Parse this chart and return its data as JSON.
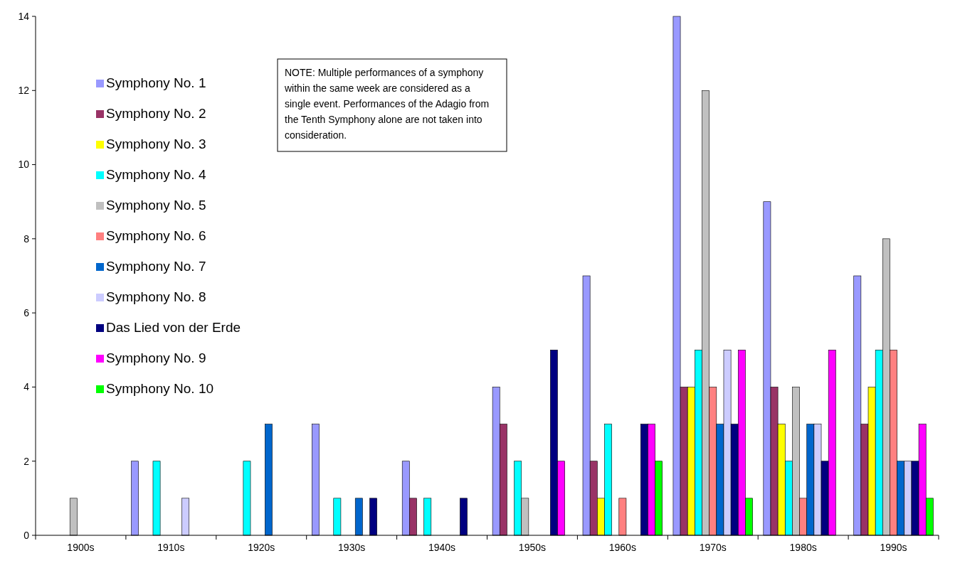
{
  "chart_data": {
    "type": "bar",
    "categories": [
      "1900s",
      "1910s",
      "1920s",
      "1930s",
      "1940s",
      "1950s",
      "1960s",
      "1970s",
      "1980s",
      "1990s"
    ],
    "series": [
      {
        "name": "Symphony No. 1",
        "color": "#9999ff",
        "values": [
          0,
          2,
          0,
          3,
          2,
          4,
          7,
          14,
          9,
          7
        ]
      },
      {
        "name": "Symphony No. 2",
        "color": "#993366",
        "values": [
          0,
          0,
          0,
          0,
          1,
          3,
          2,
          4,
          4,
          3
        ]
      },
      {
        "name": "Symphony No. 3",
        "color": "#ffff00",
        "values": [
          0,
          0,
          0,
          0,
          0,
          0,
          1,
          4,
          3,
          4
        ]
      },
      {
        "name": "Symphony No. 4",
        "color": "#00ffff",
        "values": [
          0,
          2,
          2,
          1,
          1,
          2,
          3,
          5,
          2,
          5
        ]
      },
      {
        "name": "Symphony No. 5",
        "color": "#c0c0c0",
        "values": [
          1,
          0,
          0,
          0,
          0,
          1,
          0,
          12,
          4,
          8
        ]
      },
      {
        "name": "Symphony No. 6",
        "color": "#ff8080",
        "values": [
          0,
          0,
          0,
          0,
          0,
          0,
          1,
          4,
          1,
          5
        ]
      },
      {
        "name": "Symphony No. 7",
        "color": "#0066cc",
        "values": [
          0,
          0,
          3,
          1,
          0,
          0,
          0,
          3,
          3,
          2
        ]
      },
      {
        "name": "Symphony No. 8",
        "color": "#ccccff",
        "values": [
          0,
          1,
          0,
          0,
          0,
          0,
          0,
          5,
          3,
          2
        ]
      },
      {
        "name": "Das Lied von der Erde",
        "color": "#000080",
        "values": [
          0,
          0,
          0,
          1,
          1,
          5,
          3,
          3,
          2,
          2
        ]
      },
      {
        "name": "Symphony No. 9",
        "color": "#ff00ff",
        "values": [
          0,
          0,
          0,
          0,
          0,
          2,
          3,
          5,
          5,
          3
        ]
      },
      {
        "name": "Symphony No. 10",
        "color": "#00ff00",
        "values": [
          0,
          0,
          0,
          0,
          0,
          0,
          2,
          1,
          0,
          1
        ]
      }
    ],
    "ylim": [
      0,
      14
    ],
    "yticks": [
      0,
      2,
      4,
      6,
      8,
      10,
      12,
      14
    ],
    "grid": false,
    "legend": "top left",
    "annotations": [
      "NOTE: Multiple performances of a symphony within the same week are considered as a single event. Performances of the Adagio from the Tenth Symphony alone are not taken into consideration."
    ]
  }
}
